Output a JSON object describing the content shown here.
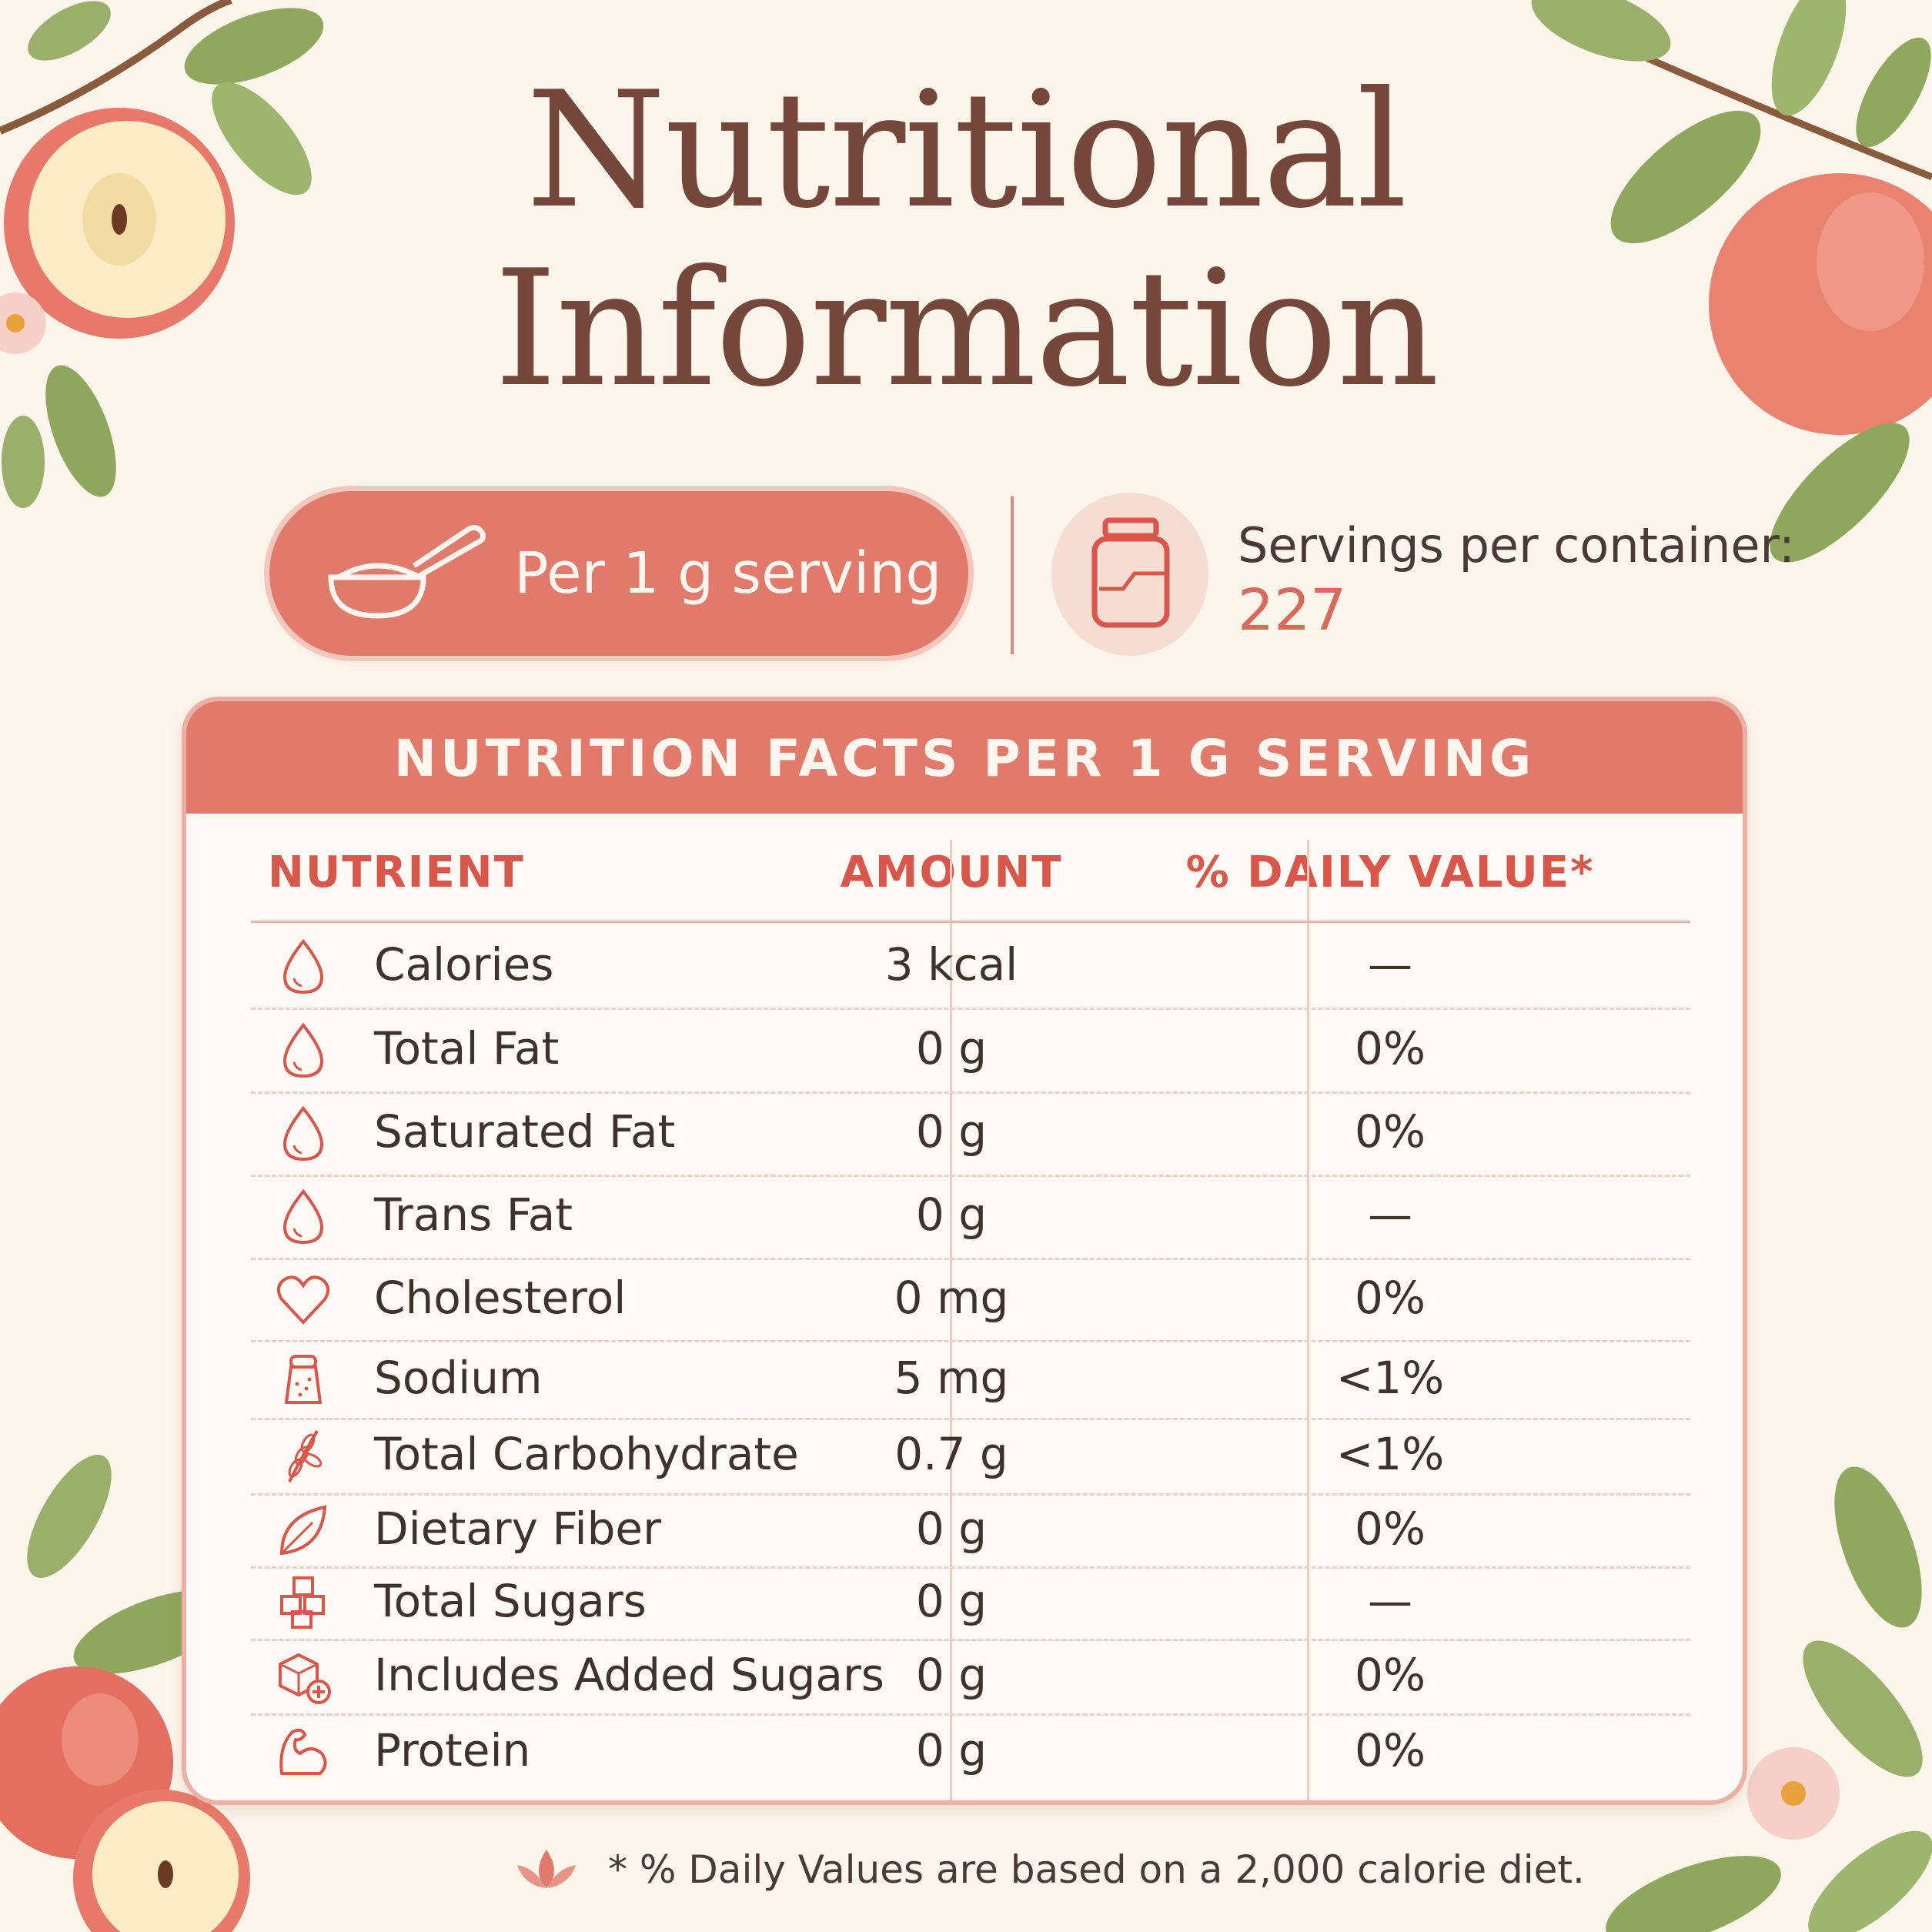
{
  "title": {
    "line1": "Nutritional",
    "line2": "Information"
  },
  "serving": {
    "label": "Per 1 g serving"
  },
  "servings_per_container": {
    "label": "Servings per container:",
    "value": "227"
  },
  "table": {
    "header": "NUTRITION FACTS PER 1 G SERVING",
    "columns": [
      "NUTRIENT",
      "AMOUNT",
      "% DAILY VALUE*"
    ],
    "rows": [
      {
        "icon": "drop-icon",
        "name": "Calories",
        "amount": "3 kcal",
        "dv": "—"
      },
      {
        "icon": "drop-icon",
        "name": "Total Fat",
        "amount": "0 g",
        "dv": "0%"
      },
      {
        "icon": "drop-icon",
        "name": "Saturated Fat",
        "amount": "0 g",
        "dv": "0%"
      },
      {
        "icon": "drop-icon",
        "name": "Trans Fat",
        "amount": "0 g",
        "dv": "—"
      },
      {
        "icon": "heart-icon",
        "name": "Cholesterol",
        "amount": "0 mg",
        "dv": "0%"
      },
      {
        "icon": "salt-shaker-icon",
        "name": "Sodium",
        "amount": "5 mg",
        "dv": "<1%"
      },
      {
        "icon": "wheat-icon",
        "name": "Total Carbohydrate",
        "amount": "0.7 g",
        "dv": "<1%"
      },
      {
        "icon": "leaf-icon",
        "name": "Dietary Fiber",
        "amount": "0 g",
        "dv": "0%"
      },
      {
        "icon": "sugar-cubes-icon",
        "name": "Total Sugars",
        "amount": "0 g",
        "dv": "—"
      },
      {
        "icon": "sugar-cube-plus-icon",
        "name": "Includes Added Sugars",
        "amount": "0 g",
        "dv": "0%"
      },
      {
        "icon": "muscle-icon",
        "name": "Protein",
        "amount": "0 g",
        "dv": "0%"
      }
    ]
  },
  "footnote": "* % Daily Values are based on a 2,000 calorie diet.",
  "colors": {
    "accent": "#e17a6b",
    "title": "#74473a",
    "background": "#fbf5ec",
    "header_text": "#d9564a"
  }
}
